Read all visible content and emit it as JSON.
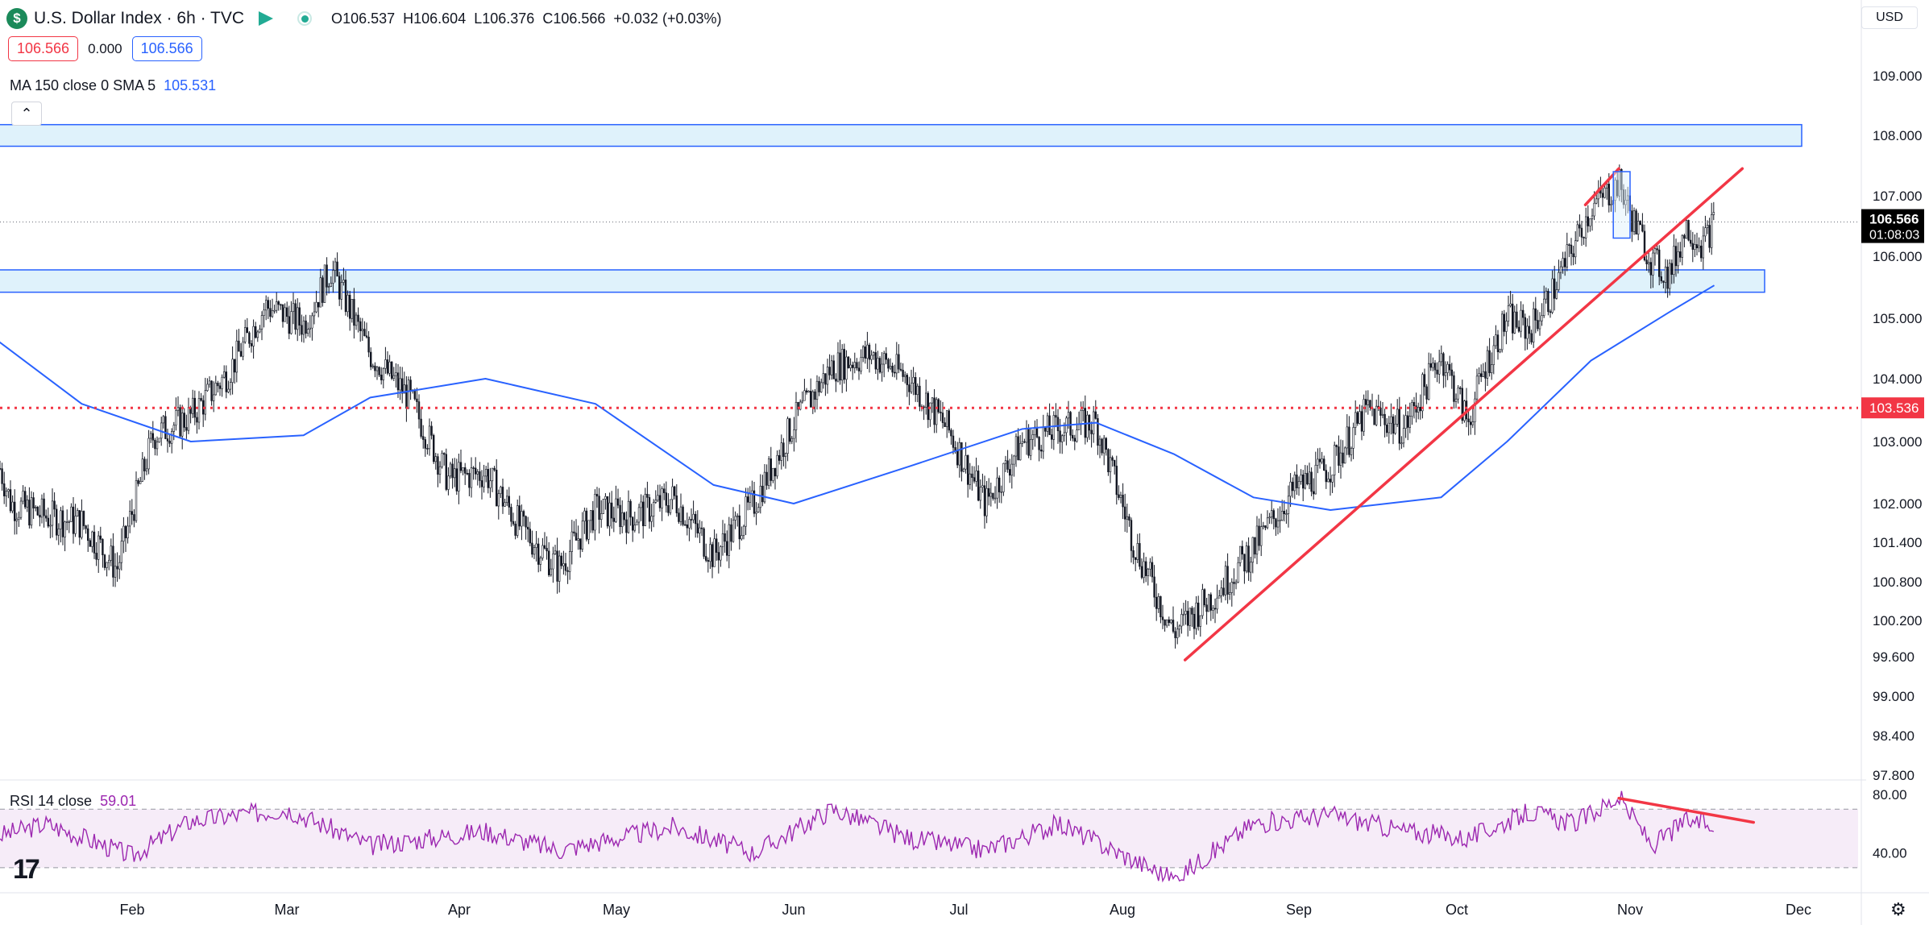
{
  "header": {
    "symbol_logo": "$",
    "title": "U.S. Dollar Index · 6h · TVC",
    "ohlc": {
      "o_label": "O",
      "o": "106.537",
      "h_label": "H",
      "h": "106.604",
      "l_label": "L",
      "l": "106.376",
      "c_label": "C",
      "c": "106.566",
      "change": "+0.032 (+0.03%)"
    },
    "sell_price": "106.566",
    "spread": "0.000",
    "buy_price": "106.566",
    "currency": "USD",
    "collapse_icon": "chevron-up-icon"
  },
  "indicators": {
    "ma_label": "MA 150 close 0 SMA 5",
    "ma_value": "105.531",
    "rsi_label": "RSI 14 close",
    "rsi_value": "59.01"
  },
  "branding": {
    "logo_text": "17"
  },
  "colors": {
    "ma": "#2962ff",
    "rsi": "#9c27b0",
    "trend": "#f23645",
    "zone_fill": "#dff2fb",
    "zone_border": "#2962ff",
    "candles": "#131722",
    "last_price_bg": "#000000",
    "level_bg": "#f23645"
  },
  "chart_data": {
    "type": "candlestick",
    "title": "U.S. Dollar Index · 6h · TVC",
    "x_ticks": [
      "Feb",
      "Mar",
      "Apr",
      "May",
      "Jun",
      "Jul",
      "Aug",
      "Sep",
      "Oct",
      "Nov",
      "Dec"
    ],
    "y_ticks": [
      "109.000",
      "108.000",
      "107.000",
      "106.000",
      "105.000",
      "104.000",
      "103.000",
      "102.000",
      "101.400",
      "100.800",
      "100.200",
      "99.600",
      "99.000",
      "98.400",
      "97.800"
    ],
    "last_price": "106.566",
    "countdown": "01:08:03",
    "horizontal_level": "103.536",
    "zones": [
      {
        "name": "upper-resistance-zone",
        "from": 107.82,
        "to": 108.18
      },
      {
        "name": "support-zone",
        "from": 105.42,
        "to": 105.78
      }
    ],
    "price_path": [
      [
        "Jan 01",
        103.8
      ],
      [
        "Jan 08",
        102.0
      ],
      [
        "Jan 15",
        101.8
      ],
      [
        "Jan 22",
        101.7
      ],
      [
        "Jan 29",
        101.0
      ],
      [
        "Feb 05",
        103.1
      ],
      [
        "Feb 12",
        103.4
      ],
      [
        "Feb 19",
        104.1
      ],
      [
        "Feb 26",
        105.2
      ],
      [
        "Mar 04",
        104.9
      ],
      [
        "Mar 09",
        105.8
      ],
      [
        "Mar 16",
        104.4
      ],
      [
        "Mar 23",
        103.7
      ],
      [
        "Mar 30",
        102.4
      ],
      [
        "Apr 06",
        102.5
      ],
      [
        "Apr 13",
        101.6
      ],
      [
        "Apr 20",
        101.0
      ],
      [
        "Apr 27",
        101.9
      ],
      [
        "May 04",
        101.8
      ],
      [
        "May 11",
        102.1
      ],
      [
        "May 18",
        101.2
      ],
      [
        "May 25",
        102.0
      ],
      [
        "Jun 01",
        103.3
      ],
      [
        "Jun 08",
        104.2
      ],
      [
        "Jun 15",
        104.4
      ],
      [
        "Jun 22",
        104.0
      ],
      [
        "Jun 29",
        103.2
      ],
      [
        "Jul 06",
        102.0
      ],
      [
        "Jul 13",
        103.0
      ],
      [
        "Jul 20",
        103.2
      ],
      [
        "Jul 27",
        103.3
      ],
      [
        "Aug 03",
        101.4
      ],
      [
        "Aug 10",
        100.0
      ],
      [
        "Aug 17",
        100.6
      ],
      [
        "Aug 24",
        101.3
      ],
      [
        "Aug 31",
        102.2
      ],
      [
        "Sep 07",
        102.6
      ],
      [
        "Sep 14",
        103.5
      ],
      [
        "Sep 21",
        103.2
      ],
      [
        "Sep 28",
        104.4
      ],
      [
        "Oct 03",
        103.3
      ],
      [
        "Oct 06",
        104.2
      ],
      [
        "Oct 10",
        105.0
      ],
      [
        "Oct 14",
        104.8
      ],
      [
        "Oct 18",
        105.4
      ],
      [
        "Oct 22",
        106.2
      ],
      [
        "Oct 25",
        106.8
      ],
      [
        "Oct 30",
        107.2
      ],
      [
        "Nov 02",
        106.5
      ],
      [
        "Nov 05",
        105.9
      ],
      [
        "Nov 08",
        105.7
      ],
      [
        "Nov 11",
        106.5
      ],
      [
        "Nov 14",
        106.2
      ],
      [
        "Nov 16",
        106.57
      ]
    ],
    "ma150_path": [
      [
        "Jan 01",
        104.9
      ],
      [
        "Jan 22",
        103.6
      ],
      [
        "Feb 12",
        103.0
      ],
      [
        "Mar 04",
        103.1
      ],
      [
        "Mar 16",
        103.7
      ],
      [
        "Apr 06",
        104.0
      ],
      [
        "Apr 27",
        103.6
      ],
      [
        "May 18",
        102.3
      ],
      [
        "Jun 01",
        102.0
      ],
      [
        "Jun 22",
        102.6
      ],
      [
        "Jul 13",
        103.2
      ],
      [
        "Jul 27",
        103.3
      ],
      [
        "Aug 10",
        102.8
      ],
      [
        "Aug 24",
        102.1
      ],
      [
        "Sep 07",
        101.9
      ],
      [
        "Sep 28",
        102.1
      ],
      [
        "Oct 10",
        103.0
      ],
      [
        "Oct 25",
        104.3
      ],
      [
        "Nov 08",
        105.1
      ],
      [
        "Nov 16",
        105.53
      ]
    ],
    "trendlines": [
      {
        "name": "ascending-trendline",
        "from": [
          "Aug 12",
          99.55
        ],
        "to": [
          "Nov 21",
          107.45
        ]
      },
      {
        "name": "peak-trendline",
        "from": [
          "Oct 24",
          106.85
        ],
        "to": [
          "Oct 30",
          107.45
        ]
      }
    ],
    "peak_box": {
      "from": [
        "Oct 29",
        106.3
      ],
      "to": [
        "Nov 01",
        107.4
      ]
    },
    "rsi": {
      "ylim": [
        20,
        90
      ],
      "band": [
        30,
        70
      ],
      "ticks": [
        "80.00",
        "40.00"
      ],
      "path": [
        [
          "Jan 01",
          48
        ],
        [
          "Jan 15",
          60
        ],
        [
          "Feb 01",
          38
        ],
        [
          "Feb 12",
          62
        ],
        [
          "Mar 01",
          70
        ],
        [
          "Mar 16",
          45
        ],
        [
          "Apr 06",
          55
        ],
        [
          "Apr 20",
          42
        ],
        [
          "May 11",
          58
        ],
        [
          "May 25",
          40
        ],
        [
          "Jun 08",
          70
        ],
        [
          "Jun 22",
          50
        ],
        [
          "Jul 06",
          42
        ],
        [
          "Jul 20",
          60
        ],
        [
          "Aug 03",
          35
        ],
        [
          "Aug 10",
          22
        ],
        [
          "Aug 24",
          60
        ],
        [
          "Sep 07",
          66
        ],
        [
          "Sep 21",
          55
        ],
        [
          "Oct 03",
          50
        ],
        [
          "Oct 14",
          68
        ],
        [
          "Oct 22",
          60
        ],
        [
          "Oct 30",
          78
        ],
        [
          "Nov 05",
          45
        ],
        [
          "Nov 11",
          62
        ],
        [
          "Nov 16",
          59
        ]
      ],
      "divergence_line": {
        "from": [
          "Oct 30",
          77.5
        ],
        "to": [
          "Nov 23",
          61
        ]
      }
    }
  }
}
